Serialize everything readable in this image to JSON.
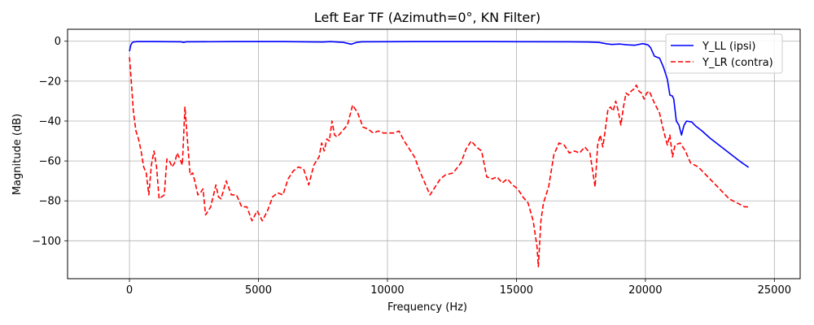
{
  "chart_data": {
    "type": "line",
    "title": "Left Ear TF (Azimuth=0°, KN Filter)",
    "xlabel": "Frequency (Hz)",
    "ylabel": "Magnitude (dB)",
    "xlim": [
      -2400,
      26000
    ],
    "ylim": [
      -119,
      6
    ],
    "xticks": [
      0,
      5000,
      10000,
      15000,
      20000,
      25000
    ],
    "yticks": [
      0,
      -20,
      -40,
      -60,
      -80,
      -100
    ],
    "grid": true,
    "legend_position": "upper-right",
    "series": [
      {
        "name": "Y_LL (ipsi)",
        "color": "#0000ff",
        "style": "solid",
        "points": [
          [
            0,
            -5
          ],
          [
            50,
            -2
          ],
          [
            100,
            -0.8
          ],
          [
            150,
            -0.4
          ],
          [
            300,
            -0.2
          ],
          [
            1000,
            -0.2
          ],
          [
            2000,
            -0.3
          ],
          [
            2100,
            -0.6
          ],
          [
            2200,
            -0.3
          ],
          [
            4000,
            -0.2
          ],
          [
            6000,
            -0.2
          ],
          [
            7500,
            -0.4
          ],
          [
            7800,
            -0.2
          ],
          [
            8300,
            -0.6
          ],
          [
            8600,
            -1.5
          ],
          [
            8800,
            -0.6
          ],
          [
            9000,
            -0.3
          ],
          [
            11000,
            -0.2
          ],
          [
            14000,
            -0.2
          ],
          [
            17000,
            -0.3
          ],
          [
            17800,
            -0.4
          ],
          [
            18200,
            -0.6
          ],
          [
            18500,
            -1.3
          ],
          [
            18700,
            -1.6
          ],
          [
            19000,
            -1.4
          ],
          [
            19300,
            -1.8
          ],
          [
            19600,
            -2.0
          ],
          [
            19900,
            -1.2
          ],
          [
            20100,
            -1.8
          ],
          [
            20200,
            -3.2
          ],
          [
            20350,
            -7.5
          ],
          [
            20550,
            -8.5
          ],
          [
            20700,
            -13.0
          ],
          [
            20850,
            -19.0
          ],
          [
            20950,
            -27.0
          ],
          [
            21050,
            -27.5
          ],
          [
            21100,
            -29.0
          ],
          [
            21200,
            -40.0
          ],
          [
            21300,
            -42.0
          ],
          [
            21400,
            -47.0
          ],
          [
            21500,
            -42.0
          ],
          [
            21600,
            -40.0
          ],
          [
            21800,
            -40.5
          ],
          [
            21950,
            -42.5
          ],
          [
            22200,
            -45.0
          ],
          [
            22500,
            -48.5
          ],
          [
            22800,
            -51.5
          ],
          [
            23100,
            -54.5
          ],
          [
            23400,
            -57.5
          ],
          [
            23700,
            -60.5
          ],
          [
            23900,
            -62.3
          ],
          [
            24000,
            -63.2
          ]
        ]
      },
      {
        "name": "Y_LR (contra)",
        "color": "#ff0000",
        "style": "dashed",
        "points": [
          [
            0,
            -8
          ],
          [
            60,
            -18
          ],
          [
            150,
            -35
          ],
          [
            250,
            -45
          ],
          [
            350,
            -49
          ],
          [
            450,
            -55
          ],
          [
            550,
            -63
          ],
          [
            650,
            -66
          ],
          [
            750,
            -77
          ],
          [
            850,
            -62
          ],
          [
            950,
            -55
          ],
          [
            1050,
            -63
          ],
          [
            1150,
            -79
          ],
          [
            1250,
            -78
          ],
          [
            1350,
            -77
          ],
          [
            1450,
            -59
          ],
          [
            1550,
            -60
          ],
          [
            1650,
            -63
          ],
          [
            1750,
            -61
          ],
          [
            1850,
            -56
          ],
          [
            1950,
            -59
          ],
          [
            2050,
            -62
          ],
          [
            2150,
            -33
          ],
          [
            2250,
            -50
          ],
          [
            2350,
            -67
          ],
          [
            2450,
            -66
          ],
          [
            2550,
            -71
          ],
          [
            2650,
            -77
          ],
          [
            2750,
            -76
          ],
          [
            2850,
            -74
          ],
          [
            2950,
            -87
          ],
          [
            3050,
            -85
          ],
          [
            3150,
            -83
          ],
          [
            3350,
            -72
          ],
          [
            3450,
            -78
          ],
          [
            3550,
            -79
          ],
          [
            3750,
            -70
          ],
          [
            3950,
            -77
          ],
          [
            4150,
            -77
          ],
          [
            4350,
            -83
          ],
          [
            4550,
            -83
          ],
          [
            4750,
            -90
          ],
          [
            4950,
            -85
          ],
          [
            5150,
            -90
          ],
          [
            5350,
            -85
          ],
          [
            5550,
            -78
          ],
          [
            5750,
            -76
          ],
          [
            5950,
            -77
          ],
          [
            6150,
            -69
          ],
          [
            6350,
            -65
          ],
          [
            6550,
            -63
          ],
          [
            6750,
            -64
          ],
          [
            6950,
            -72
          ],
          [
            7150,
            -62
          ],
          [
            7350,
            -58
          ],
          [
            7450,
            -51
          ],
          [
            7550,
            -55
          ],
          [
            7650,
            -49
          ],
          [
            7750,
            -50
          ],
          [
            7850,
            -40
          ],
          [
            7950,
            -47
          ],
          [
            8050,
            -48
          ],
          [
            8250,
            -45
          ],
          [
            8450,
            -42
          ],
          [
            8650,
            -32
          ],
          [
            8850,
            -36
          ],
          [
            9050,
            -43
          ],
          [
            9250,
            -44
          ],
          [
            9450,
            -46
          ],
          [
            9650,
            -45
          ],
          [
            9850,
            -46
          ],
          [
            10050,
            -46
          ],
          [
            10250,
            -46
          ],
          [
            10450,
            -45
          ],
          [
            10650,
            -50
          ],
          [
            10850,
            -54
          ],
          [
            11050,
            -58
          ],
          [
            11250,
            -65
          ],
          [
            11450,
            -71
          ],
          [
            11650,
            -77
          ],
          [
            11850,
            -73
          ],
          [
            12050,
            -69
          ],
          [
            12250,
            -67
          ],
          [
            12550,
            -66
          ],
          [
            12850,
            -61
          ],
          [
            13050,
            -54
          ],
          [
            13250,
            -50
          ],
          [
            13450,
            -53
          ],
          [
            13650,
            -55
          ],
          [
            13850,
            -68
          ],
          [
            14050,
            -69
          ],
          [
            14250,
            -68
          ],
          [
            14450,
            -71
          ],
          [
            14650,
            -69
          ],
          [
            14850,
            -72
          ],
          [
            15050,
            -74
          ],
          [
            15250,
            -78
          ],
          [
            15450,
            -81
          ],
          [
            15650,
            -90
          ],
          [
            15800,
            -103
          ],
          [
            15850,
            -113
          ],
          [
            15950,
            -90
          ],
          [
            16050,
            -81
          ],
          [
            16250,
            -73
          ],
          [
            16450,
            -57
          ],
          [
            16650,
            -51
          ],
          [
            16850,
            -52
          ],
          [
            17050,
            -56
          ],
          [
            17250,
            -55
          ],
          [
            17450,
            -56
          ],
          [
            17650,
            -53
          ],
          [
            17850,
            -56
          ],
          [
            18050,
            -73
          ],
          [
            18150,
            -52
          ],
          [
            18250,
            -47
          ],
          [
            18350,
            -53
          ],
          [
            18450,
            -44
          ],
          [
            18550,
            -34
          ],
          [
            18650,
            -33
          ],
          [
            18750,
            -35
          ],
          [
            18850,
            -30
          ],
          [
            18950,
            -35
          ],
          [
            19050,
            -42
          ],
          [
            19150,
            -33
          ],
          [
            19250,
            -26
          ],
          [
            19350,
            -27
          ],
          [
            19450,
            -25
          ],
          [
            19550,
            -24
          ],
          [
            19650,
            -22
          ],
          [
            19750,
            -25
          ],
          [
            19850,
            -26
          ],
          [
            19950,
            -29
          ],
          [
            20050,
            -26
          ],
          [
            20150,
            -25
          ],
          [
            20250,
            -28
          ],
          [
            20350,
            -31
          ],
          [
            20550,
            -36
          ],
          [
            20650,
            -42
          ],
          [
            20750,
            -47
          ],
          [
            20850,
            -52
          ],
          [
            20950,
            -47
          ],
          [
            21050,
            -58
          ],
          [
            21150,
            -52
          ],
          [
            21350,
            -51
          ],
          [
            21550,
            -55
          ],
          [
            21750,
            -61
          ],
          [
            22050,
            -63
          ],
          [
            22350,
            -67
          ],
          [
            22650,
            -71
          ],
          [
            22950,
            -75
          ],
          [
            23250,
            -79
          ],
          [
            23550,
            -81
          ],
          [
            23850,
            -83
          ],
          [
            24000,
            -83
          ]
        ]
      }
    ]
  }
}
